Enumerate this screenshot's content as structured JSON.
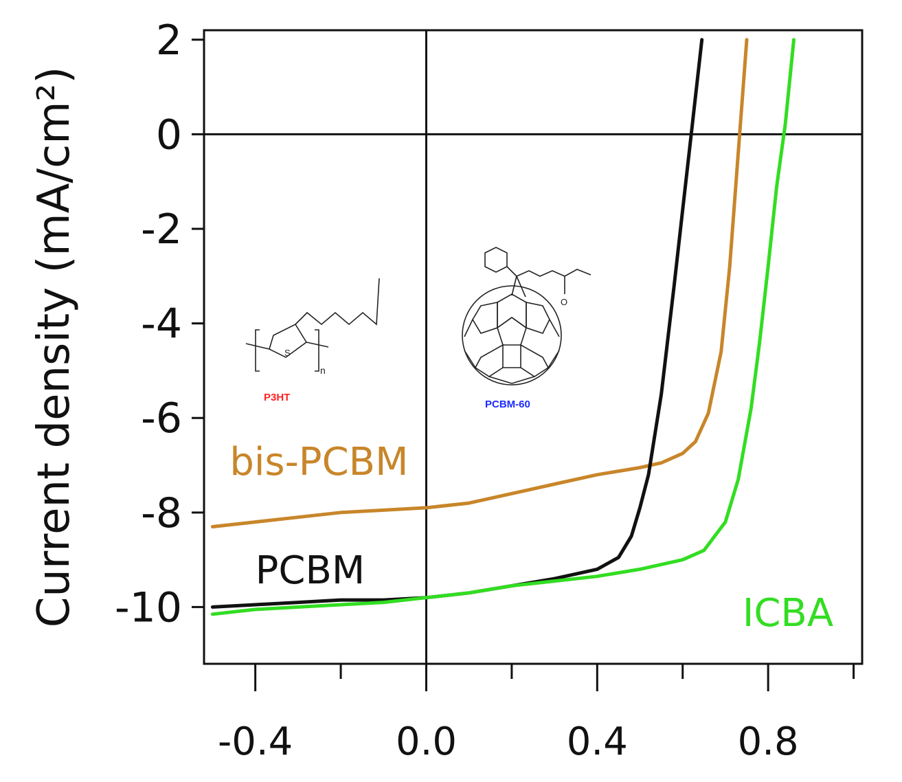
{
  "chart_data": {
    "type": "line",
    "title": "",
    "xlabel": "",
    "ylabel": "Current density (mA/cm²)",
    "xlim": [
      -0.52,
      1.02
    ],
    "ylim": [
      -11.2,
      2.2
    ],
    "x_ticks": [
      -0.4,
      0.0,
      0.4,
      0.8
    ],
    "x_tick_labels": [
      "-0.4",
      "0.0",
      "0.4",
      "0.8"
    ],
    "x_minor_ticks": [
      -0.2,
      0.2,
      0.6,
      1.0
    ],
    "y_ticks": [
      2,
      0,
      -2,
      -4,
      -6,
      -8,
      -10
    ],
    "y_tick_labels": [
      "2",
      "0",
      "-2",
      "-4",
      "-6",
      "-8",
      "-10"
    ],
    "reference_lines": {
      "x": 0,
      "y": 0
    },
    "grid": false,
    "series": [
      {
        "name": "bis-PCBM",
        "color": "#c8862a",
        "x": [
          -0.5,
          -0.4,
          -0.3,
          -0.2,
          -0.1,
          0.0,
          0.1,
          0.2,
          0.3,
          0.4,
          0.5,
          0.55,
          0.6,
          0.63,
          0.66,
          0.69,
          0.71,
          0.73,
          0.75
        ],
        "y": [
          -8.3,
          -8.2,
          -8.1,
          -8.0,
          -7.95,
          -7.9,
          -7.8,
          -7.6,
          -7.4,
          -7.2,
          -7.05,
          -6.95,
          -6.75,
          -6.5,
          -5.9,
          -4.6,
          -2.8,
          -0.4,
          2.0
        ]
      },
      {
        "name": "PCBM",
        "color": "#111111",
        "x": [
          -0.5,
          -0.4,
          -0.3,
          -0.2,
          -0.1,
          0.0,
          0.1,
          0.2,
          0.3,
          0.4,
          0.45,
          0.48,
          0.5,
          0.52,
          0.55,
          0.58,
          0.6,
          0.62,
          0.645
        ],
        "y": [
          -10.0,
          -9.95,
          -9.9,
          -9.85,
          -9.85,
          -9.8,
          -9.7,
          -9.55,
          -9.4,
          -9.2,
          -8.95,
          -8.5,
          -7.9,
          -7.2,
          -5.5,
          -3.2,
          -1.6,
          0.0,
          2.0
        ]
      },
      {
        "name": "ICBA",
        "color": "#33dd22",
        "x": [
          -0.5,
          -0.4,
          -0.3,
          -0.2,
          -0.1,
          0.0,
          0.1,
          0.2,
          0.3,
          0.4,
          0.5,
          0.6,
          0.65,
          0.7,
          0.73,
          0.76,
          0.78,
          0.8,
          0.82,
          0.84,
          0.86
        ],
        "y": [
          -10.15,
          -10.05,
          -10.0,
          -9.95,
          -9.9,
          -9.8,
          -9.7,
          -9.55,
          -9.45,
          -9.35,
          -9.2,
          -9.0,
          -8.8,
          -8.2,
          -7.3,
          -5.8,
          -4.4,
          -2.8,
          -1.1,
          0.2,
          2.0
        ]
      }
    ],
    "annotations": [
      {
        "text": "bis-PCBM",
        "x": -0.46,
        "y": -7.2,
        "color": "#c8862a"
      },
      {
        "text": "PCBM",
        "x": -0.4,
        "y": -9.5,
        "color": "#111111"
      },
      {
        "text": "ICBA",
        "x": 0.74,
        "y": -10.4,
        "color": "#33dd22"
      }
    ]
  },
  "insets": {
    "p3ht": {
      "label": "P3HT",
      "label_color": "#ff2020",
      "subscript": "n",
      "atom": "S"
    },
    "pcbm60": {
      "label": "PCBM-60",
      "label_color": "#1a2bff",
      "atom": "O"
    }
  }
}
